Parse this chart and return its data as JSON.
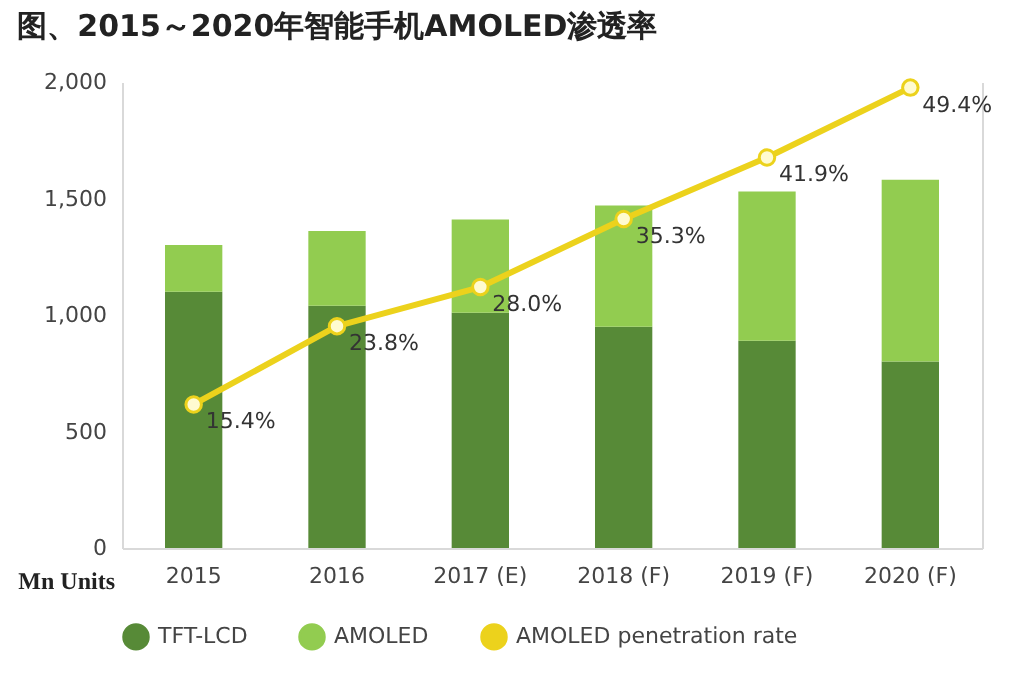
{
  "chart_data": {
    "type": "bar",
    "title": "图、2015～2020年智能手机AMOLED渗透率",
    "ylabel": "Mn Units",
    "categories": [
      "2015",
      "2016",
      "2017 (E)",
      "2018 (F)",
      "2019 (F)",
      "2020 (F)"
    ],
    "stacked": true,
    "series": [
      {
        "name": "TFT-LCD",
        "color": "#578a37",
        "values": [
          1100,
          1040,
          1010,
          950,
          890,
          800
        ]
      },
      {
        "name": "AMOLED",
        "color": "#92cc50",
        "values": [
          200,
          320,
          400,
          520,
          640,
          780
        ]
      },
      {
        "name": "AMOLED penetration rate",
        "type": "line",
        "axis": "y2",
        "color": "#ecd21c",
        "marker": "circle",
        "values": [
          15.4,
          23.8,
          28.0,
          35.3,
          41.9,
          49.4
        ],
        "value_labels": [
          "15.4%",
          "23.8%",
          "28.0%",
          "35.3%",
          "41.9%",
          "49.4%"
        ]
      }
    ],
    "ylim": [
      0,
      2000
    ],
    "yticks": [
      0,
      {
        "value": 500,
        "label": "500"
      },
      {
        "value": 1000,
        "label": "1,000"
      },
      {
        "value": 1500,
        "label": "1,500"
      },
      {
        "value": 2000,
        "label": "2,000"
      }
    ],
    "y2lim": [
      0,
      50
    ],
    "legend": "bottom",
    "grid": false
  }
}
